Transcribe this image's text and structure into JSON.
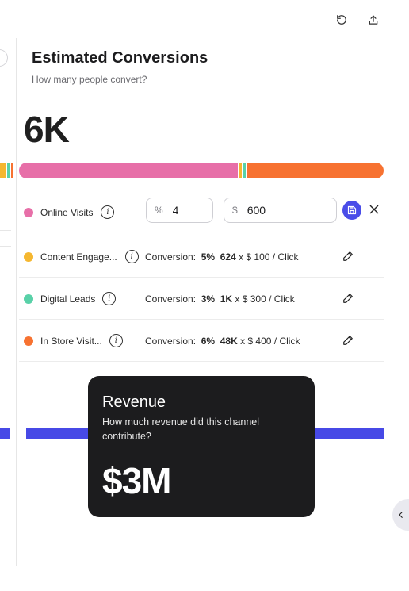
{
  "header": {
    "undo_icon": "undo-icon",
    "share_icon": "share-icon"
  },
  "panel": {
    "title": "Estimated Conversions",
    "subtitle": "How many people convert?",
    "total": "6K"
  },
  "colors": {
    "online": "#e76fa8",
    "content": "#f5b730",
    "digital": "#59d1a8",
    "store": "#f77231",
    "accent": "#4a4de8",
    "revenue_line": "#4749e6"
  },
  "channels": [
    {
      "name": "Online Visits",
      "editing": true,
      "percent_prefix": "%",
      "percent_value": "4",
      "dollar_prefix": "$",
      "dollar_value": "600"
    },
    {
      "name": "Content Engage...",
      "conv_label": "Conversion:",
      "conv_rate": "5%",
      "conv_count": "624",
      "conv_rest": "x $ 100 / Click"
    },
    {
      "name": "Digital Leads",
      "conv_label": "Conversion:",
      "conv_rate": "3%",
      "conv_count": "1K",
      "conv_rest": "x $ 300 / Click"
    },
    {
      "name": "In Store Visit...",
      "conv_label": "Conversion:",
      "conv_rate": "6%",
      "conv_count": "48K",
      "conv_rest": "x $ 400 / Click"
    }
  ],
  "tooltip": {
    "title": "Revenue",
    "subtitle": "How much revenue did this channel contribute?",
    "value": "$3M"
  }
}
